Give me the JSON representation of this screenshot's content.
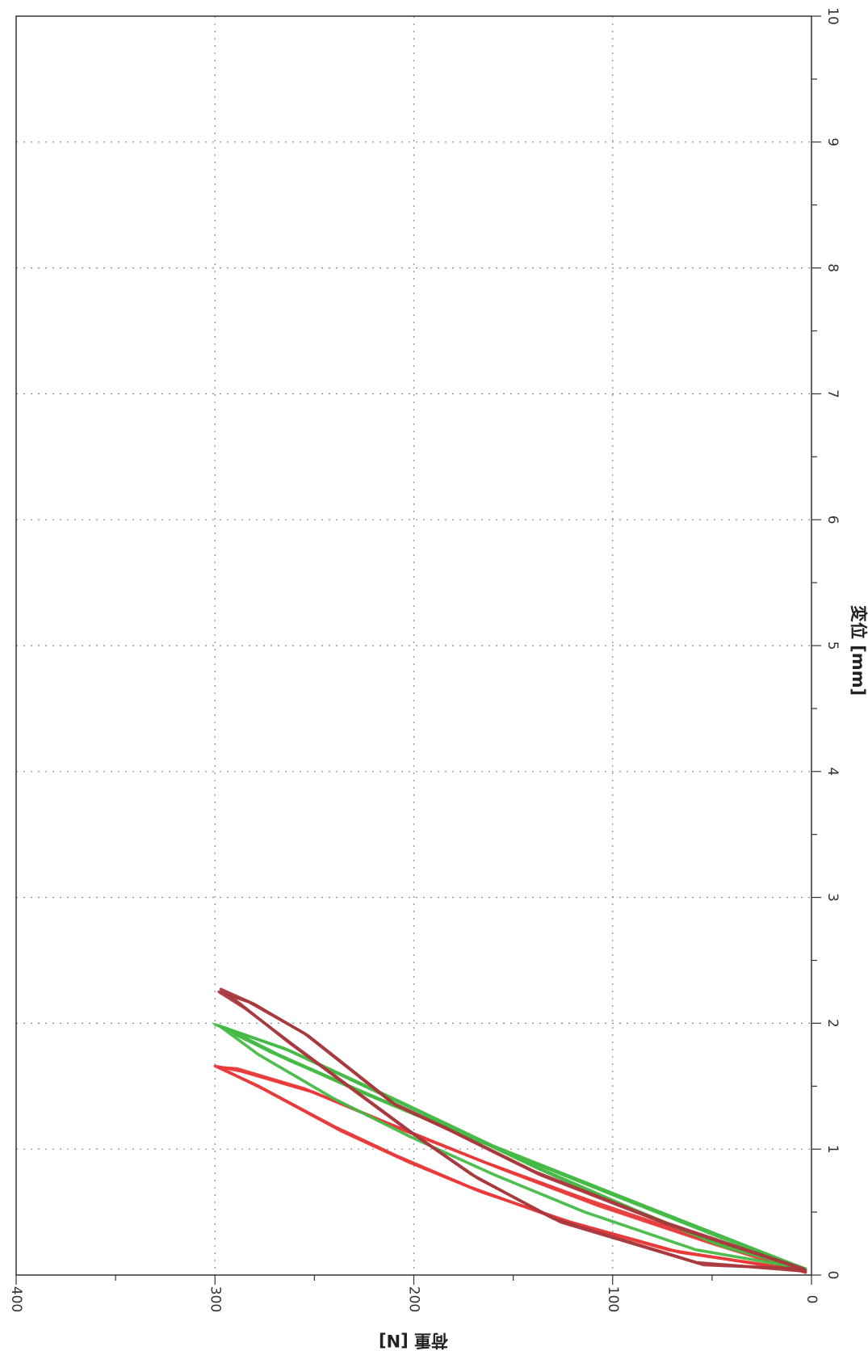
{
  "chart_data": {
    "type": "line",
    "rotation": "rotated 90 degrees clockwise",
    "xlabel": "変位 [mm]",
    "ylabel": "荷重 [N]",
    "xlim": [
      0,
      10
    ],
    "ylim": [
      0,
      400
    ],
    "x_ticks": [
      "0",
      "1",
      "2",
      "3",
      "4",
      "5",
      "6",
      "7",
      "8",
      "9",
      "10"
    ],
    "y_ticks": [
      "0",
      "100",
      "200",
      "300",
      "400"
    ],
    "grid": true,
    "series": [
      {
        "color": "#e83a3a",
        "x": [
          0.02,
          0.25,
          0.55,
          0.85,
          1.15,
          1.45,
          1.62,
          1.66,
          1.5,
          1.18,
          0.95,
          0.7,
          0.45,
          0.2,
          0.03
        ],
        "y": [
          3,
          50,
          107,
          157,
          205,
          250,
          287,
          300,
          278,
          240,
          209,
          172,
          128,
          72,
          4
        ]
      },
      {
        "color": "#e83a3a",
        "x": [
          0.04,
          0.3,
          0.6,
          0.9,
          1.2,
          1.48,
          1.64,
          1.65,
          1.48,
          1.14,
          0.9,
          0.66,
          0.42,
          0.18,
          0.04
        ],
        "y": [
          5,
          57,
          113,
          165,
          212,
          255,
          289,
          298,
          276,
          236,
          203,
          166,
          121,
          66,
          5
        ]
      },
      {
        "color": "#46b946",
        "x": [
          0.05,
          0.35,
          0.7,
          1.05,
          1.4,
          1.75,
          1.95,
          1.99,
          1.8,
          1.45,
          1.15,
          0.85,
          0.55,
          0.25,
          0.05
        ],
        "y": [
          4,
          52,
          108,
          164,
          218,
          268,
          293,
          300,
          265,
          218,
          178,
          138,
          95,
          48,
          4
        ]
      },
      {
        "color": "#46b946",
        "x": [
          0.06,
          0.4,
          0.75,
          1.1,
          1.45,
          1.78,
          1.96,
          1.98,
          1.78,
          1.43,
          1.13,
          0.82,
          0.52,
          0.22,
          0.06
        ],
        "y": [
          5,
          60,
          117,
          173,
          226,
          273,
          295,
          298,
          262,
          214,
          174,
          133,
          89,
          43,
          5
        ]
      },
      {
        "color": "#46b946",
        "x": [
          0.05,
          0.3,
          0.65,
          1.0,
          1.35,
          1.7,
          1.92,
          1.97,
          1.75,
          1.4,
          1.1,
          0.8,
          0.5,
          0.2,
          0.05
        ],
        "y": [
          3,
          46,
          102,
          157,
          210,
          262,
          291,
          297,
          278,
          240,
          202,
          160,
          114,
          58,
          3
        ]
      },
      {
        "color": "#a8393e",
        "x": [
          0.04,
          0.4,
          0.8,
          1.15,
          1.35,
          1.6,
          1.9,
          2.15,
          2.27,
          2.15,
          1.85,
          1.5,
          1.15,
          0.8,
          0.45,
          0.1,
          0.03
        ],
        "y": [
          3,
          72,
          137,
          182,
          209,
          229,
          253,
          280,
          297,
          287,
          263,
          233,
          203,
          171,
          130,
          58,
          3
        ]
      },
      {
        "color": "#a8393e",
        "x": [
          0.05,
          0.42,
          0.82,
          1.17,
          1.37,
          1.62,
          1.92,
          2.17,
          2.25,
          2.12,
          1.82,
          1.47,
          1.12,
          0.77,
          0.42,
          0.08,
          0.05
        ],
        "y": [
          4,
          74,
          139,
          184,
          211,
          231,
          255,
          283,
          298,
          285,
          260,
          230,
          200,
          168,
          126,
          54,
          4
        ]
      }
    ]
  }
}
